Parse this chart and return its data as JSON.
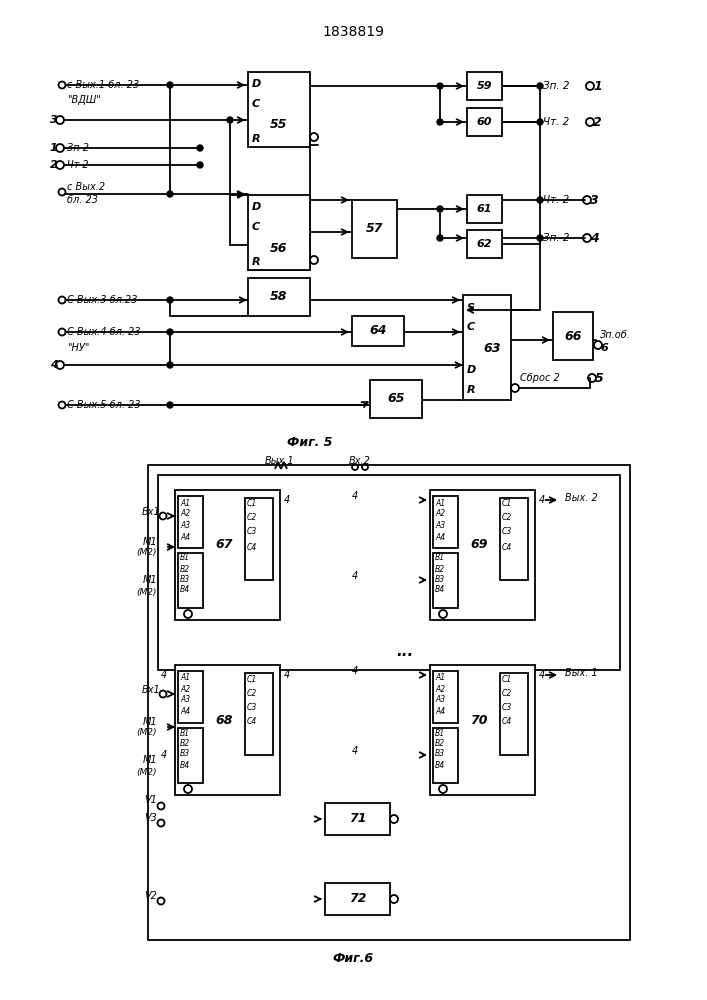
{
  "title": "1838819",
  "bg_color": "#ffffff",
  "lw": 1.3,
  "fig5_label": "Фиг. 5",
  "fig6_label": "Фиг.6"
}
